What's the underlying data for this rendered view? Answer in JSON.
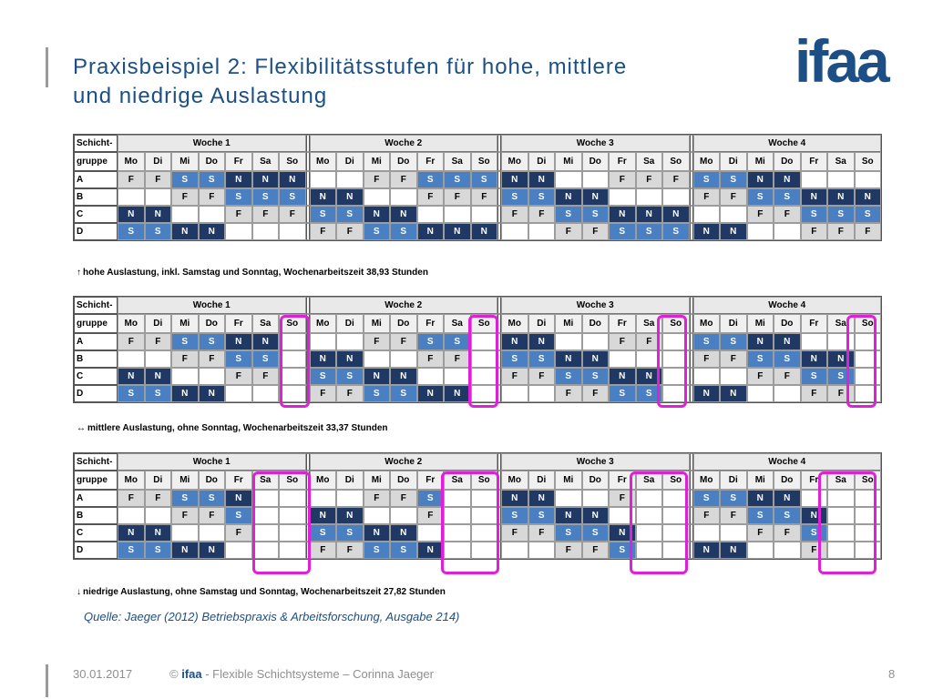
{
  "title": {
    "line1": "Praxisbeispiel 2: Flexibilitätsstufen für hohe, mittlere",
    "line2": "und niedrige Auslastung"
  },
  "logo_text": "ifaa",
  "colors": {
    "title": "#1b4f86",
    "shift_F": "#d8d8d8",
    "shift_S": "#4a7fc1",
    "shift_N": "#1f3864",
    "highlight": "#e020d8"
  },
  "header": {
    "group_label_line1": "Schicht-",
    "group_label_line2": "gruppe",
    "weeks": [
      "Woche 1",
      "Woche 2",
      "Woche 3",
      "Woche 4"
    ],
    "days": [
      "Mo",
      "Di",
      "Mi",
      "Do",
      "Fr",
      "Sa",
      "So"
    ]
  },
  "tables": [
    {
      "caption_arrow": "↑",
      "caption": "hohe Auslastung, inkl. Samstag und Sonntag, Wochenarbeitszeit 38,93 Stunden",
      "rows": [
        {
          "group": "A",
          "weeks": [
            [
              "F",
              "F",
              "S",
              "S",
              "N",
              "N",
              "N"
            ],
            [
              "",
              "",
              "F",
              "F",
              "S",
              "S",
              "S"
            ],
            [
              "N",
              "N",
              "",
              "",
              "F",
              "F",
              "F"
            ],
            [
              "S",
              "S",
              "N",
              "N",
              "",
              "",
              ""
            ]
          ]
        },
        {
          "group": "B",
          "weeks": [
            [
              "",
              "",
              "F",
              "F",
              "S",
              "S",
              "S"
            ],
            [
              "N",
              "N",
              "",
              "",
              "F",
              "F",
              "F"
            ],
            [
              "S",
              "S",
              "N",
              "N",
              "",
              "",
              ""
            ],
            [
              "F",
              "F",
              "S",
              "S",
              "N",
              "N",
              "N"
            ]
          ]
        },
        {
          "group": "C",
          "weeks": [
            [
              "N",
              "N",
              "",
              "",
              "F",
              "F",
              "F"
            ],
            [
              "S",
              "S",
              "N",
              "N",
              "",
              "",
              ""
            ],
            [
              "F",
              "F",
              "S",
              "S",
              "N",
              "N",
              "N"
            ],
            [
              "",
              "",
              "F",
              "F",
              "S",
              "S",
              "S"
            ]
          ]
        },
        {
          "group": "D",
          "weeks": [
            [
              "S",
              "S",
              "N",
              "N",
              "",
              "",
              ""
            ],
            [
              "F",
              "F",
              "S",
              "S",
              "N",
              "N",
              "N"
            ],
            [
              "",
              "",
              "F",
              "F",
              "S",
              "S",
              "S"
            ],
            [
              "N",
              "N",
              "",
              "",
              "F",
              "F",
              "F"
            ]
          ]
        }
      ]
    },
    {
      "caption_arrow": "↔",
      "caption": "mittlere Auslastung, ohne Sonntag, Wochenarbeitszeit 33,37 Stunden",
      "rows": [
        {
          "group": "A",
          "weeks": [
            [
              "F",
              "F",
              "S",
              "S",
              "N",
              "N",
              ""
            ],
            [
              "",
              "",
              "F",
              "F",
              "S",
              "S",
              ""
            ],
            [
              "N",
              "N",
              "",
              "",
              "F",
              "F",
              ""
            ],
            [
              "S",
              "S",
              "N",
              "N",
              "",
              "",
              ""
            ]
          ]
        },
        {
          "group": "B",
          "weeks": [
            [
              "",
              "",
              "F",
              "F",
              "S",
              "S",
              ""
            ],
            [
              "N",
              "N",
              "",
              "",
              "F",
              "F",
              ""
            ],
            [
              "S",
              "S",
              "N",
              "N",
              "",
              "",
              ""
            ],
            [
              "F",
              "F",
              "S",
              "S",
              "N",
              "N",
              ""
            ]
          ]
        },
        {
          "group": "C",
          "weeks": [
            [
              "N",
              "N",
              "",
              "",
              "F",
              "F",
              ""
            ],
            [
              "S",
              "S",
              "N",
              "N",
              "",
              "",
              ""
            ],
            [
              "F",
              "F",
              "S",
              "S",
              "N",
              "N",
              ""
            ],
            [
              "",
              "",
              "F",
              "F",
              "S",
              "S",
              ""
            ]
          ]
        },
        {
          "group": "D",
          "weeks": [
            [
              "S",
              "S",
              "N",
              "N",
              "",
              "",
              ""
            ],
            [
              "F",
              "F",
              "S",
              "S",
              "N",
              "N",
              ""
            ],
            [
              "",
              "",
              "F",
              "F",
              "S",
              "S",
              ""
            ],
            [
              "N",
              "N",
              "",
              "",
              "F",
              "F",
              ""
            ]
          ]
        }
      ]
    },
    {
      "caption_arrow": "↓",
      "caption": "niedrige Auslastung, ohne Samstag und Sonntag, Wochenarbeitszeit 27,82 Stunden",
      "rows": [
        {
          "group": "A",
          "weeks": [
            [
              "F",
              "F",
              "S",
              "S",
              "N",
              "",
              ""
            ],
            [
              "",
              "",
              "F",
              "F",
              "S",
              "",
              ""
            ],
            [
              "N",
              "N",
              "",
              "",
              "F",
              "",
              ""
            ],
            [
              "S",
              "S",
              "N",
              "N",
              "",
              "",
              ""
            ]
          ]
        },
        {
          "group": "B",
          "weeks": [
            [
              "",
              "",
              "F",
              "F",
              "S",
              "",
              ""
            ],
            [
              "N",
              "N",
              "",
              "",
              "F",
              "",
              ""
            ],
            [
              "S",
              "S",
              "N",
              "N",
              "",
              "",
              ""
            ],
            [
              "F",
              "F",
              "S",
              "S",
              "N",
              "",
              ""
            ]
          ]
        },
        {
          "group": "C",
          "weeks": [
            [
              "N",
              "N",
              "",
              "",
              "F",
              "",
              ""
            ],
            [
              "S",
              "S",
              "N",
              "N",
              "",
              "",
              ""
            ],
            [
              "F",
              "F",
              "S",
              "S",
              "N",
              "",
              ""
            ],
            [
              "",
              "",
              "F",
              "F",
              "S",
              "",
              ""
            ]
          ]
        },
        {
          "group": "D",
          "weeks": [
            [
              "S",
              "S",
              "N",
              "N",
              "",
              "",
              ""
            ],
            [
              "F",
              "F",
              "S",
              "S",
              "N",
              "",
              ""
            ],
            [
              "",
              "",
              "F",
              "F",
              "S",
              "",
              ""
            ],
            [
              "N",
              "N",
              "",
              "",
              "F",
              "",
              ""
            ]
          ]
        }
      ]
    }
  ],
  "source": "Quelle: Jaeger (2012) Betriebspraxis & Arbeitsforschung, Ausgabe 214)",
  "footer": {
    "date": "30.01.2017",
    "copyright_symbol": "©",
    "brand": "ifaa",
    "text": " - Flexible Schichtsysteme – Corinna Jaeger",
    "page": "8"
  }
}
